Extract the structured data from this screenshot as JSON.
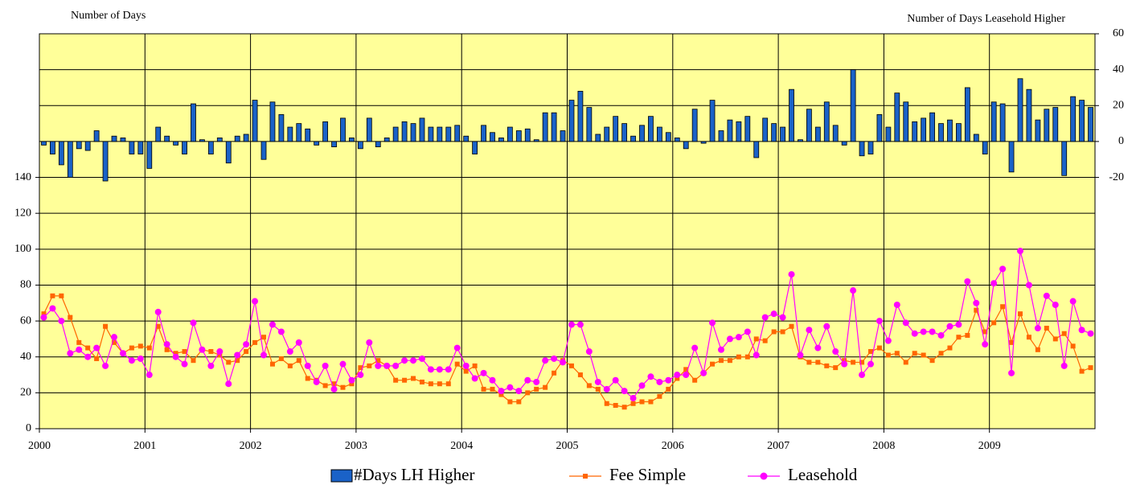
{
  "chart_data": {
    "type": "combo",
    "y_label": "Number of Days",
    "y2_label": "Number of Days Leasehold Higher",
    "categories": [
      "2000",
      null,
      null,
      null,
      null,
      null,
      null,
      null,
      null,
      null,
      null,
      null,
      "2001",
      null,
      null,
      null,
      null,
      null,
      null,
      null,
      null,
      null,
      null,
      null,
      "2002",
      null,
      null,
      null,
      null,
      null,
      null,
      null,
      null,
      null,
      null,
      null,
      "2003",
      null,
      null,
      null,
      null,
      null,
      null,
      null,
      null,
      null,
      null,
      null,
      "2004",
      null,
      null,
      null,
      null,
      null,
      null,
      null,
      null,
      null,
      null,
      null,
      "2005",
      null,
      null,
      null,
      null,
      null,
      null,
      null,
      null,
      null,
      null,
      null,
      "2006",
      null,
      null,
      null,
      null,
      null,
      null,
      null,
      null,
      null,
      null,
      null,
      "2007",
      null,
      null,
      null,
      null,
      null,
      null,
      null,
      null,
      null,
      null,
      null,
      "2008",
      null,
      null,
      null,
      null,
      null,
      null,
      null,
      null,
      null,
      null,
      null,
      "2009",
      null,
      null,
      null,
      null,
      null,
      null,
      null,
      null,
      null,
      null,
      null
    ],
    "ylim": [
      0,
      220
    ],
    "yticks": [
      0,
      20,
      40,
      60,
      80,
      100,
      120,
      140
    ],
    "y2lim": [
      -160,
      60
    ],
    "y2ticks": [
      -20,
      0,
      20,
      40,
      60
    ],
    "grid": true,
    "background": "#ffff99",
    "series": [
      {
        "name": "#Days LH Higher",
        "type": "bar",
        "axis": "y2",
        "color": "#1a62c8",
        "values": [
          -2,
          -7,
          -13,
          -20,
          -4,
          -5,
          6,
          -22,
          3,
          2,
          -7,
          -7,
          -15,
          8,
          3,
          -2,
          -7,
          21,
          1,
          -7,
          2,
          -12,
          3,
          4,
          23,
          -10,
          22,
          15,
          8,
          10,
          7,
          -2,
          11,
          -3,
          13,
          2,
          -4,
          13,
          -3,
          2,
          8,
          11,
          10,
          13,
          8,
          8,
          8,
          9,
          3,
          -7,
          9,
          5,
          2,
          8,
          6,
          7,
          1,
          16,
          16,
          6,
          23,
          28,
          19,
          4,
          8,
          14,
          10,
          3,
          9,
          14,
          8,
          5,
          2,
          -4,
          18,
          -1,
          23,
          6,
          12,
          11,
          14,
          -9,
          13,
          10,
          8,
          29,
          1,
          18,
          8,
          22,
          9,
          -2,
          40,
          -8,
          -7,
          15,
          8,
          27,
          22,
          11,
          13,
          16,
          10,
          12,
          10,
          30,
          4,
          -7,
          22,
          21,
          -17,
          35,
          29,
          12,
          18,
          19,
          -19,
          25,
          23,
          19
        ]
      },
      {
        "name": "Fee Simple",
        "type": "line",
        "marker": "square",
        "color": "#ff6600",
        "values": [
          64,
          74,
          74,
          62,
          48,
          45,
          39,
          57,
          48,
          42,
          45,
          46,
          45,
          57,
          44,
          42,
          43,
          38,
          44,
          43,
          41,
          37,
          38,
          43,
          48,
          51,
          36,
          39,
          35,
          38,
          28,
          27,
          24,
          25,
          23,
          25,
          34,
          35,
          38,
          35,
          27,
          27,
          28,
          26,
          25,
          25,
          25,
          36,
          32,
          35,
          22,
          22,
          19,
          15,
          15,
          20,
          22,
          23,
          31,
          38,
          35,
          30,
          24,
          22,
          14,
          13,
          12,
          14,
          15,
          15,
          18,
          22,
          28,
          33,
          27,
          31,
          36,
          38,
          38,
          40,
          40,
          50,
          49,
          54,
          54,
          57,
          40,
          37,
          37,
          35,
          34,
          38,
          37,
          37,
          43,
          45,
          41,
          42,
          37,
          42,
          41,
          38,
          42,
          45,
          51,
          52,
          66,
          54,
          59,
          68,
          48,
          64,
          51,
          44,
          56,
          50,
          53,
          46,
          32,
          34
        ]
      },
      {
        "name": "Leasehold",
        "type": "line",
        "marker": "circle",
        "color": "#ff00ff",
        "values": [
          62,
          67,
          60,
          42,
          44,
          40,
          45,
          35,
          51,
          42,
          38,
          39,
          30,
          65,
          47,
          40,
          36,
          59,
          44,
          35,
          43,
          25,
          41,
          47,
          71,
          41,
          58,
          54,
          43,
          48,
          35,
          26,
          35,
          22,
          36,
          27,
          30,
          48,
          35,
          35,
          35,
          38,
          38,
          39,
          33,
          33,
          33,
          45,
          35,
          28,
          31,
          27,
          21,
          23,
          21,
          27,
          26,
          38,
          39,
          37,
          58,
          58,
          43,
          26,
          22,
          27,
          21,
          17,
          24,
          29,
          26,
          27,
          30,
          30,
          45,
          31,
          59,
          44,
          50,
          51,
          54,
          41,
          62,
          64,
          62,
          86,
          41,
          55,
          45,
          57,
          43,
          36,
          77,
          30,
          36,
          60,
          49,
          69,
          59,
          53,
          54,
          54,
          52,
          57,
          58,
          82,
          70,
          47,
          81,
          89,
          31,
          99,
          80,
          56,
          74,
          69,
          35,
          71,
          55,
          53
        ]
      }
    ]
  }
}
